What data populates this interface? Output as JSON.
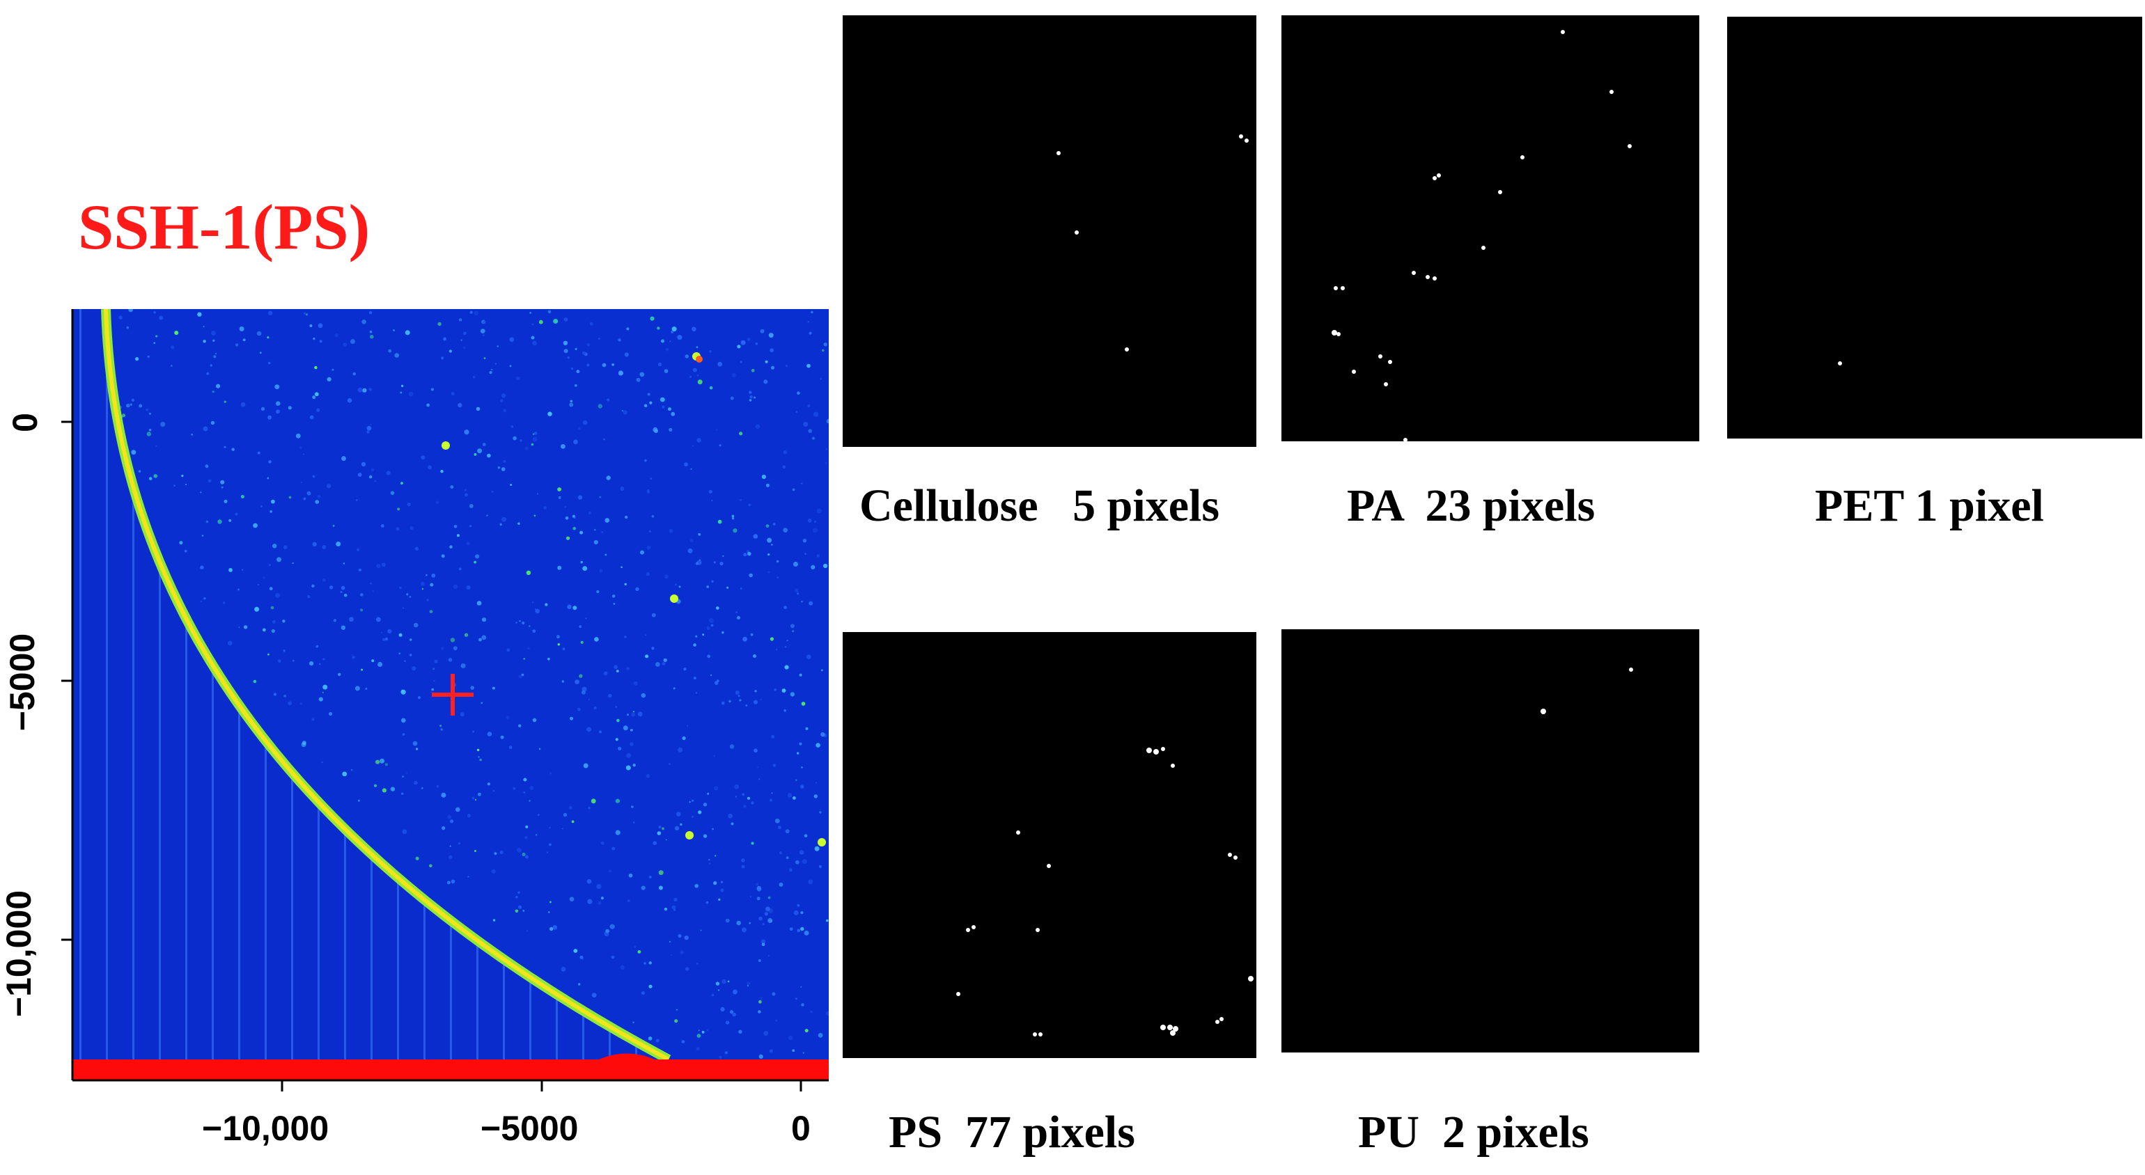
{
  "title": "SSH-1(PS)",
  "map": {
    "x_ticks": [
      "−10,000",
      "−5000",
      "0"
    ],
    "y_ticks": [
      "0",
      "−5000",
      "−10,000"
    ],
    "colors": {
      "background": "#0a2fd0",
      "edge": "#f0e020",
      "strip": "#ff0a0a",
      "cross": "#ff2020"
    }
  },
  "panels": [
    {
      "id": "cellulose",
      "caption": "Cellulose   5 pixels"
    },
    {
      "id": "pa",
      "caption": "PA  23 pixels"
    },
    {
      "id": "pet",
      "caption": "PET 1 pixel"
    },
    {
      "id": "ps",
      "caption": "PS  77 pixels"
    },
    {
      "id": "pu",
      "caption": "PU  2 pixels"
    }
  ]
}
